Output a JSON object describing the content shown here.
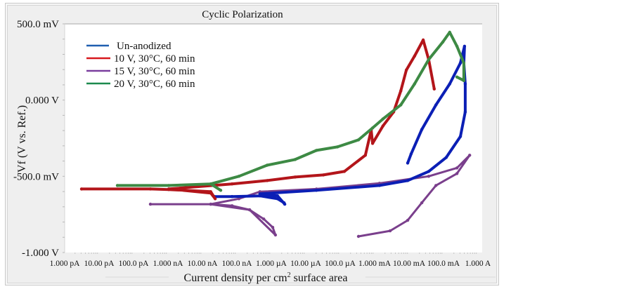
{
  "chart_data": {
    "type": "line",
    "title": "Cyclic Polarization",
    "xlabel": "Current density per cm",
    "xlabel_sup": "2",
    "xlabel_tail": " surface area",
    "ylabel": "Vf (V vs. Ref.)",
    "xscale": "log10",
    "xlim_log10": [
      -12,
      0
    ],
    "ylim": [
      -1.0,
      0.5
    ],
    "x_tick_labels": [
      "1.000 pA",
      "10.00 pA",
      "100.0 pA",
      "1.000 nA",
      "10.00 nA",
      "100.0 nA",
      "1.000 µA",
      "10.00 µA",
      "100.0 µA",
      "1.000 mA",
      "10.00 mA",
      "100.0 mA",
      "1.000 A"
    ],
    "y_ticks": [
      0.5,
      0.0,
      -0.5,
      -1.0
    ],
    "y_tick_labels": [
      "500.0 mV",
      "0.000 V",
      "-500.0 mV",
      "-1.000 V"
    ],
    "legend_position": "top-left",
    "series": [
      {
        "name": "Un-anodized",
        "color": "#0b1fb5",
        "legend_color": "#1f5fb0",
        "log10_current": [
          -7.65,
          -7.14,
          -6.33,
          -5.82,
          -5.63,
          -5.61,
          -5.82,
          -6.33,
          -4.69,
          -2.86,
          -2.04,
          -1.43,
          -0.92,
          -0.51,
          -0.37,
          -0.37,
          -0.41,
          -0.39,
          -0.51,
          -0.82,
          -1.22,
          -1.63,
          -1.94,
          -2.04
        ],
        "potential_V": [
          -0.633,
          -0.633,
          -0.628,
          -0.647,
          -0.674,
          -0.683,
          -0.628,
          -0.615,
          -0.592,
          -0.56,
          -0.528,
          -0.468,
          -0.376,
          -0.239,
          -0.078,
          0.106,
          0.243,
          0.353,
          0.243,
          0.106,
          -0.032,
          -0.193,
          -0.353,
          -0.413
        ]
      },
      {
        "name": "10 V, 30°C, 60 min",
        "color": "#b3151a",
        "legend_color": "#d7191e",
        "log10_current": [
          -11.51,
          -9.51,
          -8.98,
          -7.76,
          -7.63,
          -7.76,
          -8.98,
          -7.14,
          -6.12,
          -5.31,
          -4.49,
          -3.88,
          -3.27,
          -3.1,
          -3.06,
          -2.76,
          -2.45,
          -2.24,
          -2.08,
          -1.84,
          -1.59,
          -1.43,
          -1.27
        ],
        "potential_V": [
          -0.583,
          -0.583,
          -0.587,
          -0.601,
          -0.647,
          -0.61,
          -0.583,
          -0.55,
          -0.528,
          -0.505,
          -0.491,
          -0.468,
          -0.362,
          -0.197,
          -0.284,
          -0.17,
          -0.078,
          0.06,
          0.197,
          0.289,
          0.394,
          0.266,
          0.073
        ]
      },
      {
        "name": "15 V, 30°C, 60 min",
        "color": "#7a3f8c",
        "legend_color": "#7a3f9e",
        "log10_current": [
          -9.51,
          -7.76,
          -7.14,
          -6.63,
          -6.22,
          -5.96,
          -5.88,
          -6.63,
          -7.76,
          -6.94,
          -6.33,
          -4.69,
          -2.86,
          -1.43,
          -0.61,
          -0.24,
          -0.61,
          -1.22,
          -1.63,
          -2.04,
          -2.55,
          -3.47
        ],
        "potential_V": [
          -0.683,
          -0.683,
          -0.693,
          -0.72,
          -0.78,
          -0.835,
          -0.885,
          -0.72,
          -0.683,
          -0.647,
          -0.601,
          -0.583,
          -0.546,
          -0.5,
          -0.445,
          -0.362,
          -0.482,
          -0.56,
          -0.674,
          -0.789,
          -0.858,
          -0.894
        ]
      },
      {
        "name": "20 V, 30°C, 60 min",
        "color": "#3d8a44",
        "legend_color": "#1d8a4e",
        "log10_current": [
          -10.47,
          -8.98,
          -7.76,
          -7.47,
          -7.76,
          -6.94,
          -6.12,
          -5.31,
          -4.69,
          -4.08,
          -3.47,
          -3.06,
          -2.76,
          -2.24,
          -1.84,
          -1.43,
          -1.02,
          -0.82,
          -0.61,
          -0.41,
          -0.41,
          -0.61,
          -0.41
        ],
        "potential_V": [
          -0.56,
          -0.56,
          -0.55,
          -0.592,
          -0.55,
          -0.5,
          -0.427,
          -0.39,
          -0.33,
          -0.307,
          -0.261,
          -0.183,
          -0.124,
          -0.032,
          0.106,
          0.266,
          0.381,
          0.445,
          0.353,
          0.243,
          0.128,
          0.151,
          0.128
        ]
      }
    ]
  }
}
